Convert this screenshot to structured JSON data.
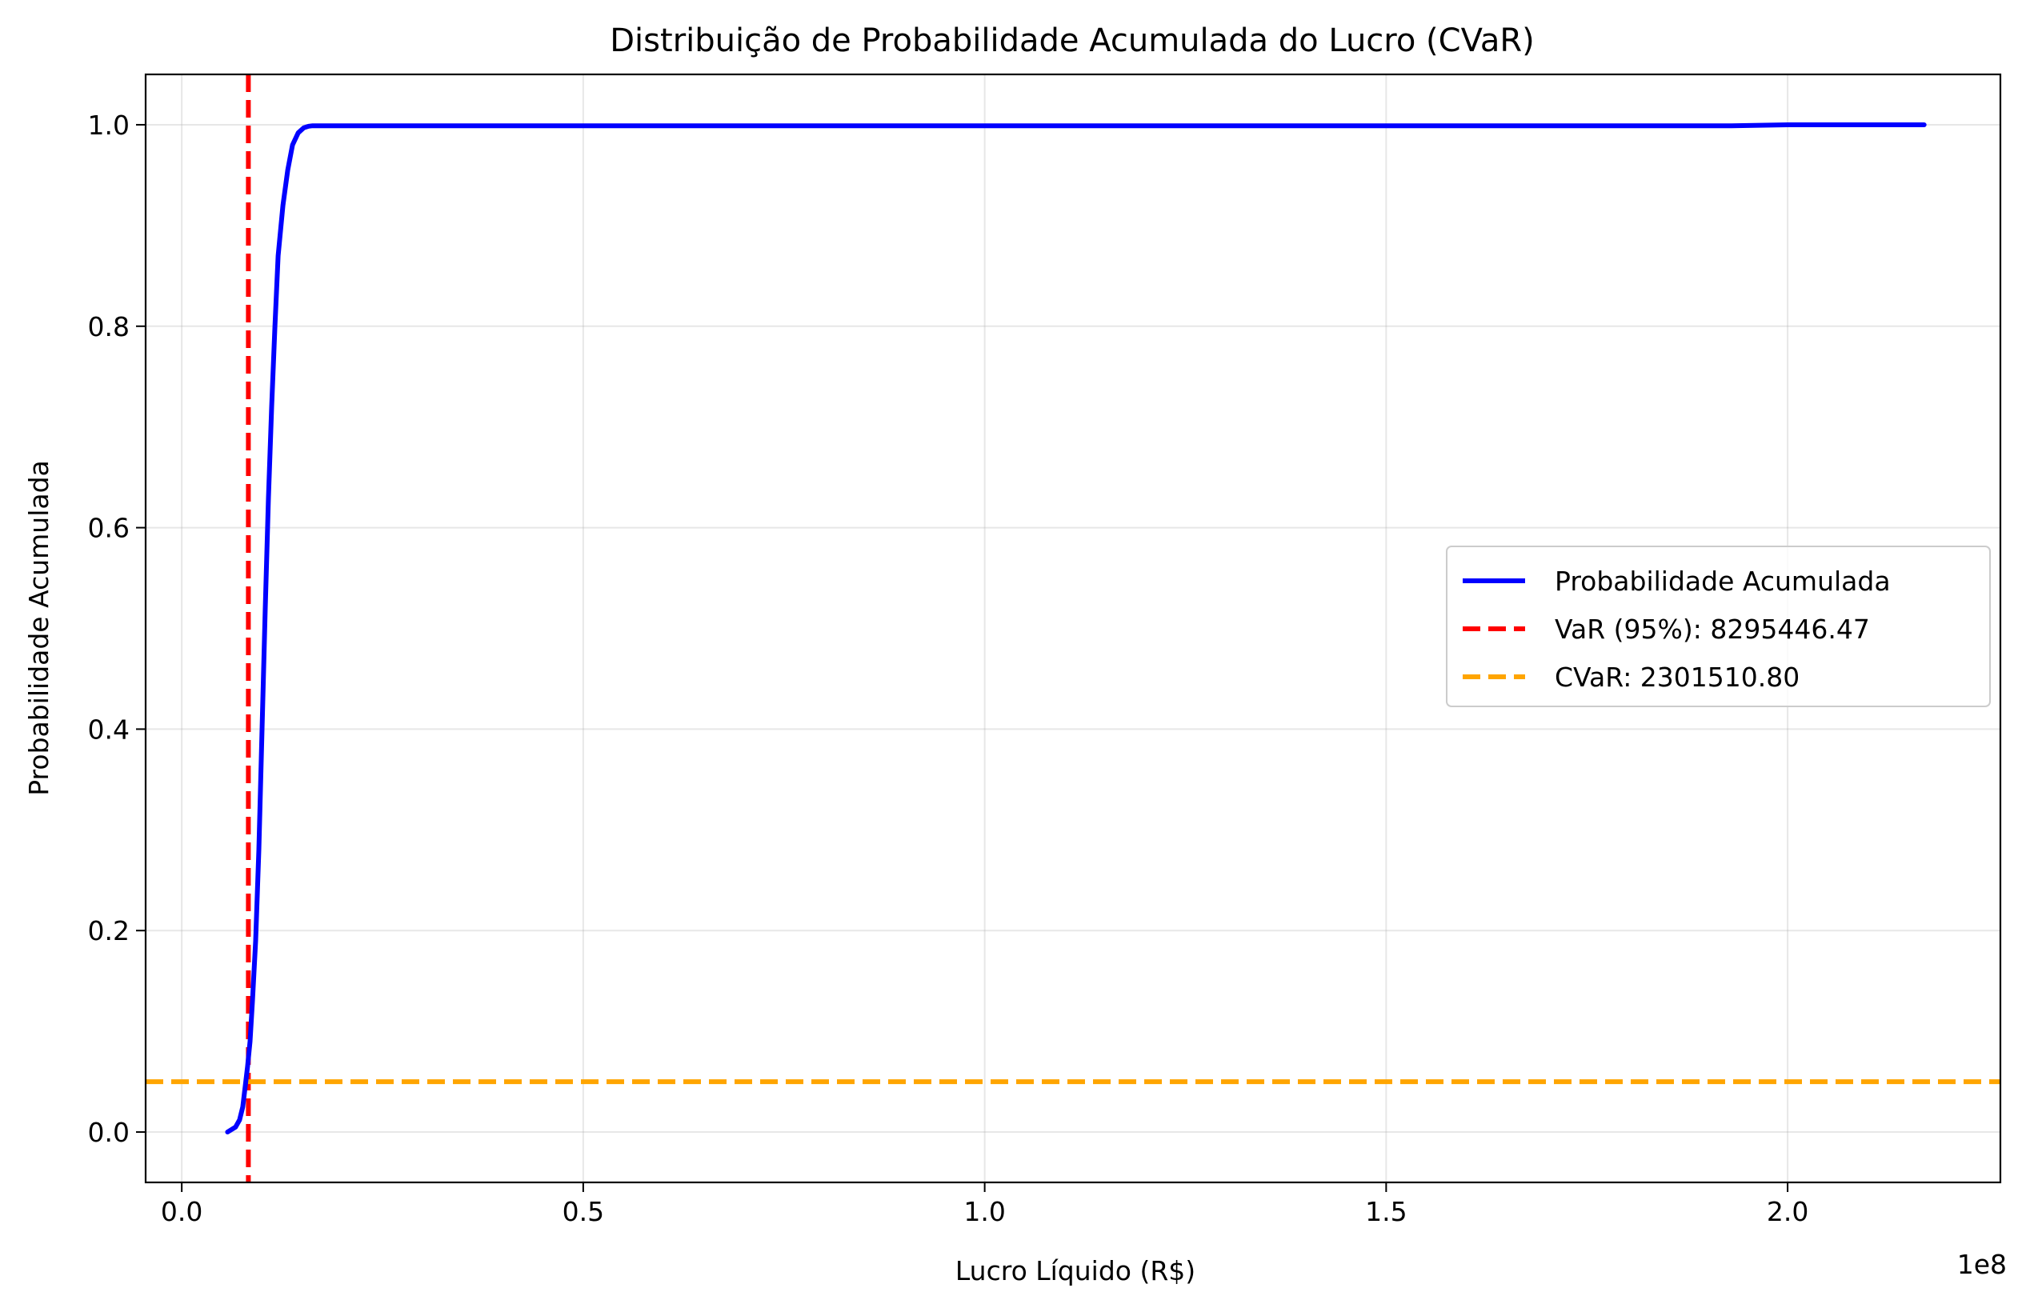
{
  "chart_data": {
    "type": "line",
    "title": "Distribuição de Probabilidade Acumulada do Lucro (CVaR)",
    "xlabel": "Lucro Líquido (R$)",
    "ylabel": "Probabilidade Acumulada",
    "x_offset_label": "1e8",
    "xlim": [
      -0.045,
      2.265
    ],
    "ylim": [
      -0.05,
      1.05
    ],
    "x_ticks": [
      {
        "value": 0.0,
        "label": "0.0"
      },
      {
        "value": 0.5,
        "label": "0.5"
      },
      {
        "value": 1.0,
        "label": "1.0"
      },
      {
        "value": 1.5,
        "label": "1.5"
      },
      {
        "value": 2.0,
        "label": "2.0"
      }
    ],
    "y_ticks": [
      {
        "value": 0.0,
        "label": "0.0"
      },
      {
        "value": 0.2,
        "label": "0.2"
      },
      {
        "value": 0.4,
        "label": "0.4"
      },
      {
        "value": 0.6,
        "label": "0.6"
      },
      {
        "value": 0.8,
        "label": "0.8"
      },
      {
        "value": 1.0,
        "label": "1.0"
      }
    ],
    "grid": true,
    "legend_position": "center-right",
    "series": [
      {
        "name": "Probabilidade Acumulada",
        "color": "#0000ff",
        "style": "solid",
        "x": [
          0.057,
          0.067,
          0.072,
          0.076,
          0.079,
          0.082,
          0.085,
          0.088,
          0.092,
          0.096,
          0.1,
          0.104,
          0.108,
          0.112,
          0.116,
          0.12,
          0.126,
          0.132,
          0.138,
          0.145,
          0.152,
          0.158,
          0.163,
          0.17,
          0.3,
          0.6,
          1.0,
          1.4,
          1.8,
          1.93,
          2.0,
          2.17
        ],
        "y": [
          0.0,
          0.005,
          0.012,
          0.025,
          0.045,
          0.065,
          0.09,
          0.13,
          0.19,
          0.28,
          0.4,
          0.52,
          0.63,
          0.72,
          0.8,
          0.87,
          0.92,
          0.955,
          0.98,
          0.992,
          0.997,
          0.9985,
          0.999,
          0.999,
          0.999,
          0.999,
          0.999,
          0.999,
          0.999,
          0.999,
          1.0,
          1.0
        ]
      },
      {
        "name": "VaR (95%): 8295446.47",
        "color": "#ff0000",
        "style": "dashed",
        "orientation": "vertical",
        "x": [
          0.0829544647
        ]
      },
      {
        "name": "CVaR: 2301510.80",
        "color": "#ffa500",
        "style": "dashed",
        "orientation": "horizontal",
        "y": [
          0.05
        ]
      }
    ]
  }
}
